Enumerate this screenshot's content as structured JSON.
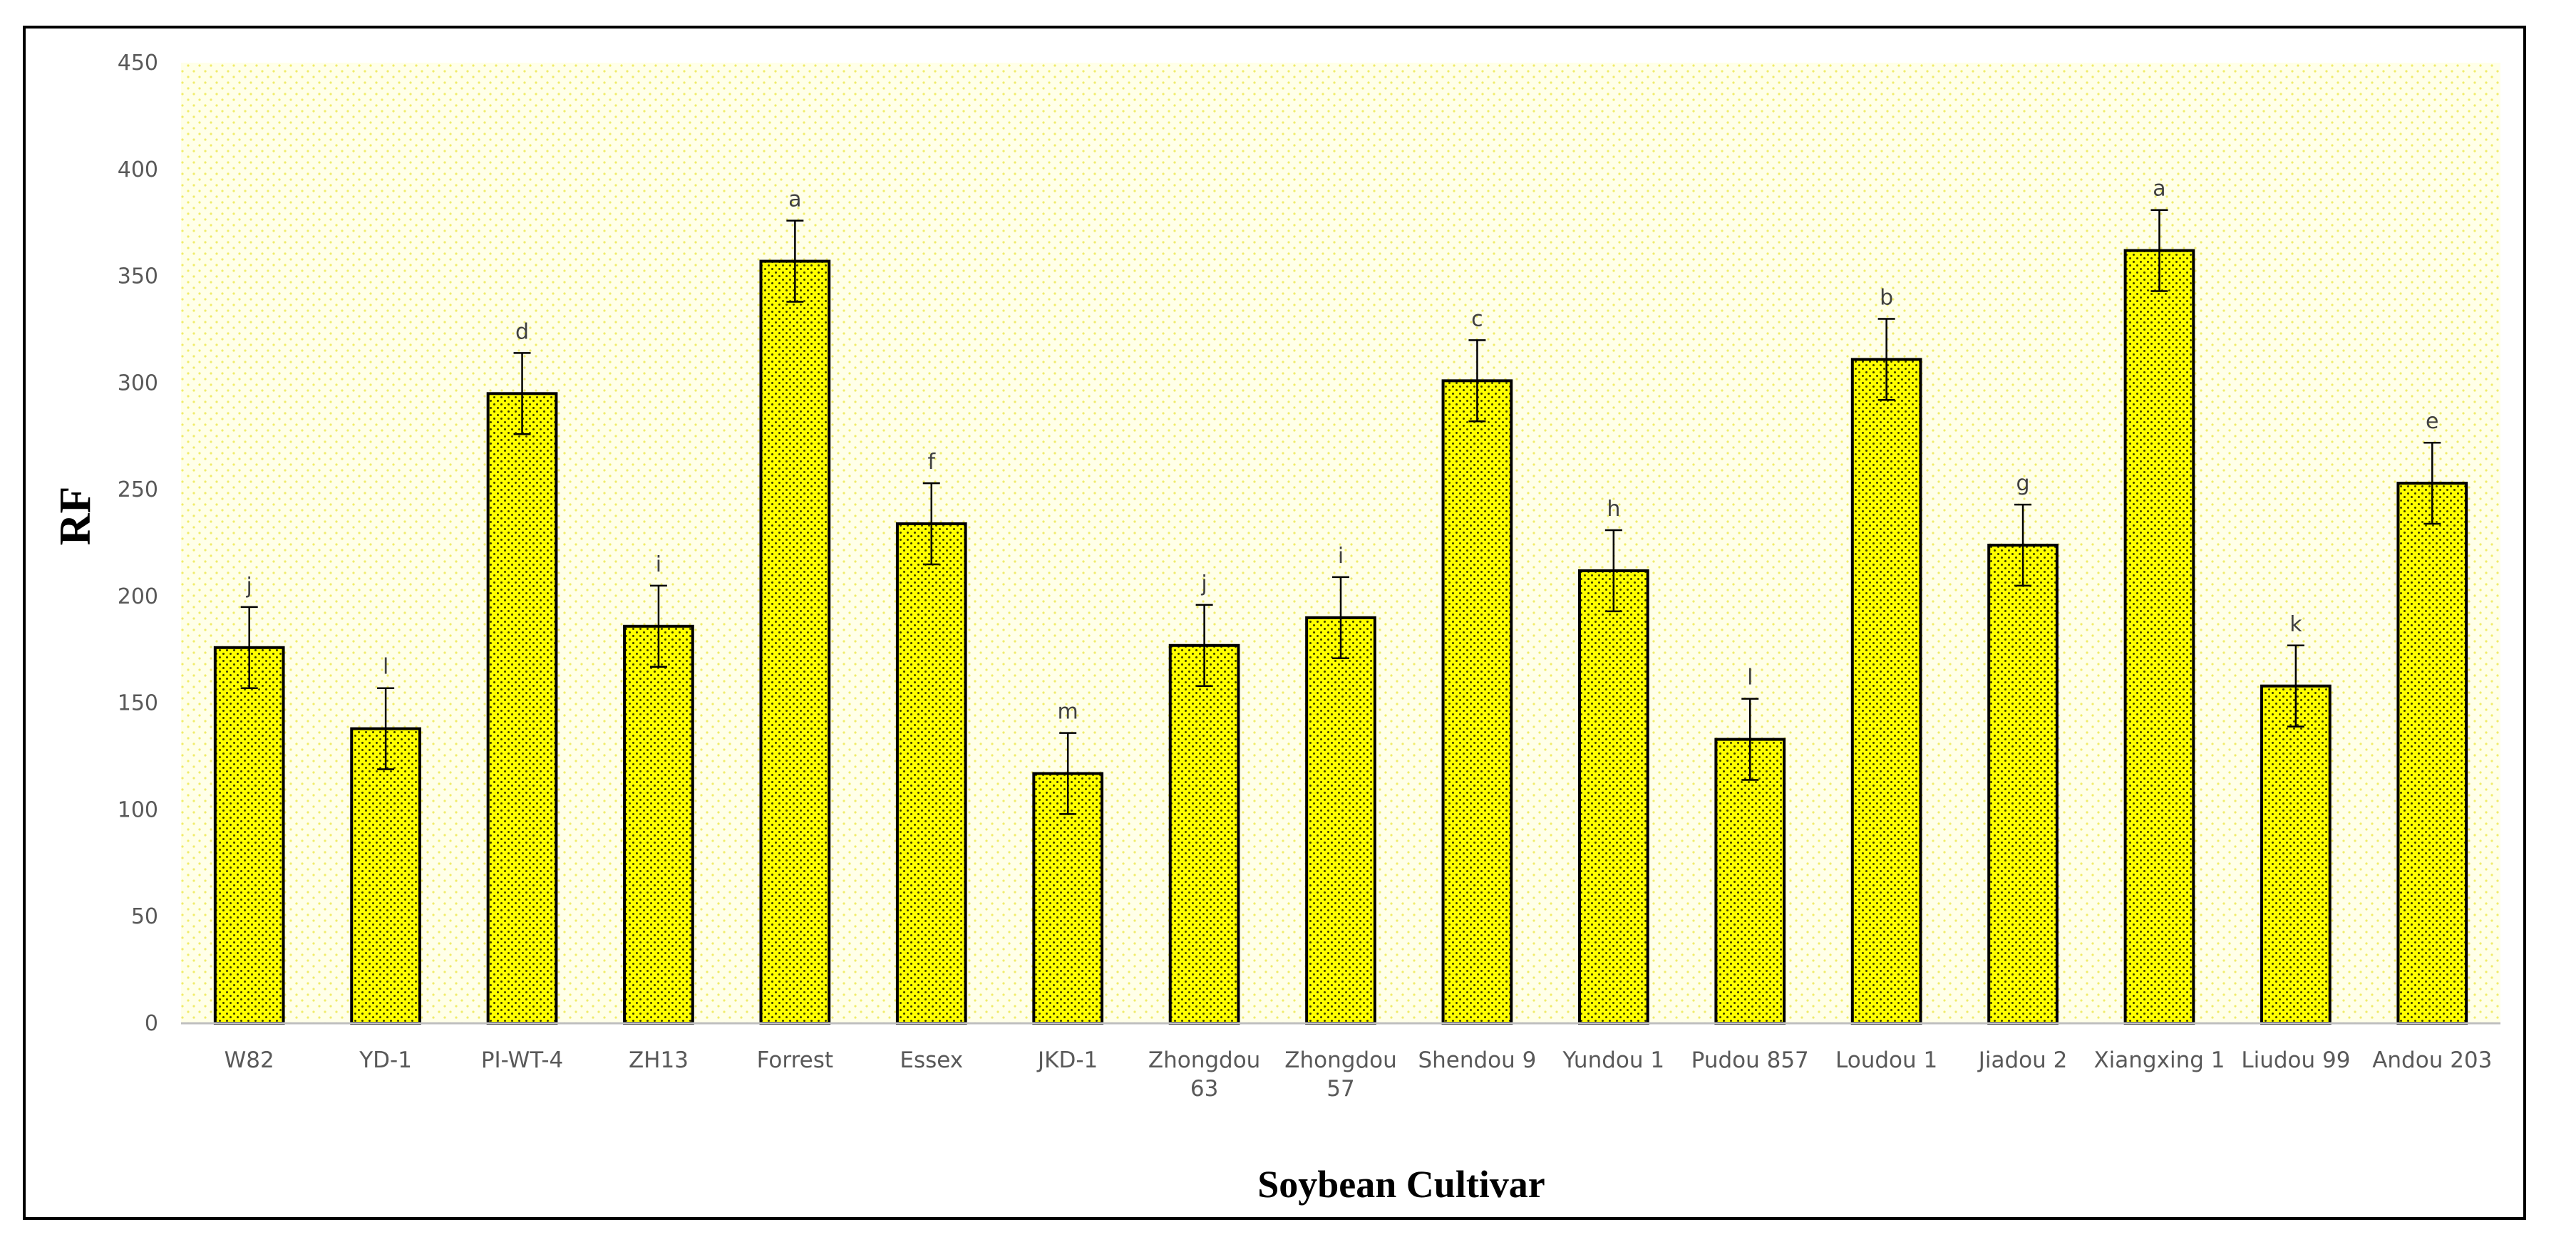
{
  "chart_data": {
    "type": "bar",
    "title": "",
    "xlabel": "Soybean Cultivar",
    "ylabel": "RF",
    "ylim": [
      0,
      450
    ],
    "yticks": [
      0,
      50,
      100,
      150,
      200,
      250,
      300,
      350,
      400,
      450
    ],
    "grid": false,
    "legend": "none",
    "bar_color": "#ffff00",
    "plot_background": "#ffffe0",
    "categories": [
      "W82",
      "YD-1",
      "PI-WT-4",
      "ZH13",
      "Forrest",
      "Essex",
      "JKD-1",
      "Zhongdou 63",
      "Zhongdou 57",
      "Shendou 9",
      "Yundou 1",
      "Pudou 857",
      "Loudou 1",
      "Jiadou 2",
      "Xiangxing 1",
      "Liudou 99",
      "Andou 203"
    ],
    "category_lines": [
      [
        "W82"
      ],
      [
        "YD-1"
      ],
      [
        "PI-WT-4"
      ],
      [
        "ZH13"
      ],
      [
        "Forrest"
      ],
      [
        "Essex"
      ],
      [
        "JKD-1"
      ],
      [
        "Zhongdou",
        "63"
      ],
      [
        "Zhongdou",
        "57"
      ],
      [
        "Shendou 9"
      ],
      [
        "Yundou 1"
      ],
      [
        "Pudou 857"
      ],
      [
        "Loudou 1"
      ],
      [
        "Jiadou 2"
      ],
      [
        "Xiangxing 1"
      ],
      [
        "Liudou 99"
      ],
      [
        "Andou 203"
      ]
    ],
    "values": [
      176,
      138,
      295,
      186,
      357,
      234,
      117,
      177,
      190,
      301,
      212,
      133,
      311,
      224,
      362,
      158,
      253
    ],
    "errors": [
      19,
      19,
      19,
      19,
      19,
      19,
      19,
      19,
      19,
      19,
      19,
      19,
      19,
      19,
      19,
      19,
      19
    ],
    "significance": [
      "j",
      "l",
      "d",
      "i",
      "a",
      "f",
      "m",
      "j",
      "i",
      "c",
      "h",
      "l",
      "b",
      "g",
      "a",
      "k",
      "e"
    ]
  }
}
